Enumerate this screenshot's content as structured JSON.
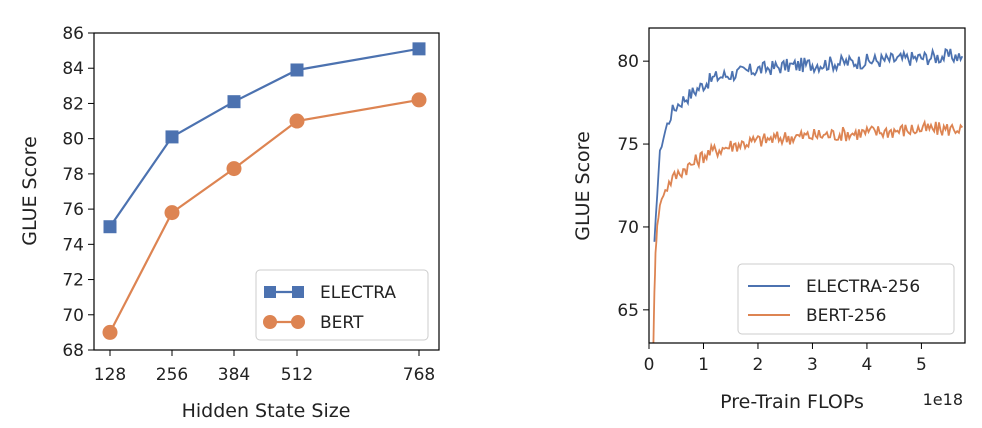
{
  "colors": {
    "electra": "#4c72b0",
    "bert": "#dd8452"
  },
  "chart_data": [
    {
      "type": "line",
      "xlabel": "Hidden State Size",
      "ylabel": "GLUE Score",
      "x": [
        128,
        256,
        384,
        512,
        768
      ],
      "xticks": [
        "128",
        "256",
        "384",
        "512",
        "768"
      ],
      "ylim": [
        68,
        86
      ],
      "yticks": [
        "68",
        "70",
        "72",
        "74",
        "76",
        "78",
        "80",
        "82",
        "84",
        "86"
      ],
      "legend_position": "lower-right",
      "series": [
        {
          "name": "ELECTRA",
          "marker": "square",
          "values": [
            75.0,
            80.1,
            82.1,
            83.9,
            85.1
          ]
        },
        {
          "name": "BERT",
          "marker": "circle",
          "values": [
            69.0,
            75.8,
            78.3,
            81.0,
            82.2
          ]
        }
      ]
    },
    {
      "type": "line",
      "xlabel": "Pre-Train FLOPs",
      "ylabel": "GLUE Score",
      "x_offset_label": "1e18",
      "xlim": [
        0,
        5.8
      ],
      "xticks": [
        "0",
        "1",
        "2",
        "3",
        "4",
        "5"
      ],
      "ylim": [
        63,
        82
      ],
      "yticks": [
        "65",
        "70",
        "75",
        "80"
      ],
      "legend_position": "lower-right",
      "series": [
        {
          "name": "ELECTRA-256",
          "x": [
            0.1,
            0.15,
            0.2,
            0.3,
            0.4,
            0.5,
            0.6,
            0.8,
            1.0,
            1.2,
            1.5,
            2.0,
            2.5,
            3.0,
            3.5,
            4.0,
            4.5,
            5.0,
            5.5,
            5.75
          ],
          "values": [
            69.0,
            72.0,
            74.5,
            75.8,
            76.8,
            77.3,
            77.6,
            78.1,
            78.6,
            79.0,
            79.2,
            79.5,
            79.7,
            79.8,
            79.9,
            80.0,
            80.1,
            80.2,
            80.3,
            80.3
          ]
        },
        {
          "name": "BERT-256",
          "x": [
            0.08,
            0.1,
            0.12,
            0.15,
            0.2,
            0.3,
            0.4,
            0.5,
            0.6,
            0.8,
            1.0,
            1.2,
            1.5,
            2.0,
            2.5,
            3.0,
            3.5,
            4.0,
            4.5,
            5.0,
            5.5,
            5.75
          ],
          "values": [
            63.0,
            66.0,
            68.5,
            70.0,
            71.3,
            72.3,
            72.8,
            73.1,
            73.4,
            73.8,
            74.3,
            74.6,
            74.9,
            75.2,
            75.4,
            75.5,
            75.6,
            75.7,
            75.8,
            75.9,
            75.9,
            76.0
          ]
        }
      ]
    }
  ]
}
